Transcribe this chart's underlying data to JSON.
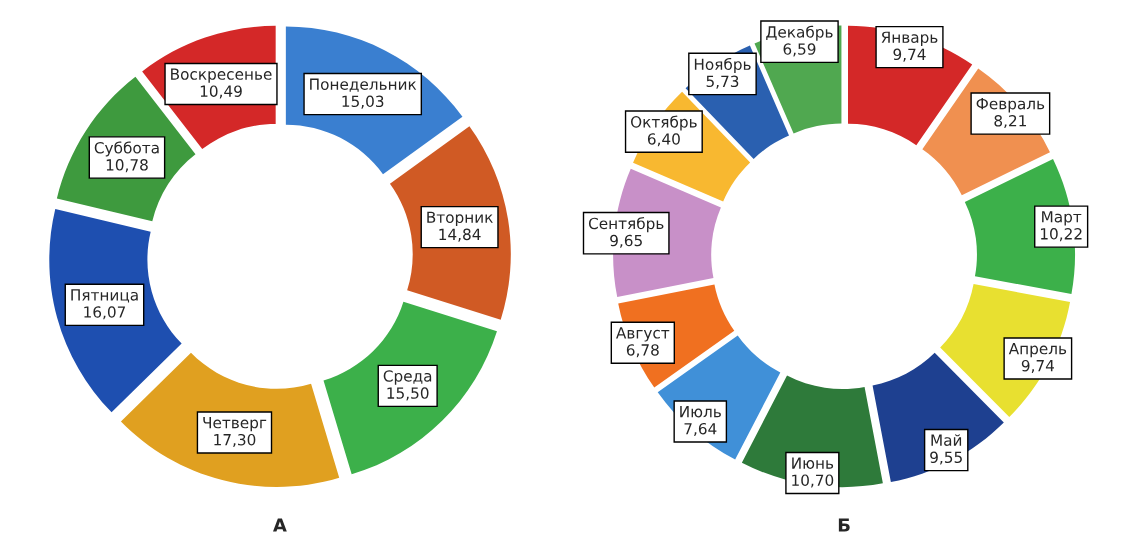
{
  "chart_data": [
    {
      "type": "donut",
      "title": "А",
      "categories": [
        "Понедельник",
        "Вторник",
        "Среда",
        "Четверг",
        "Пятница",
        "Суббота",
        "Воскресенье"
      ],
      "values": [
        15.03,
        14.84,
        15.5,
        17.3,
        16.07,
        10.78,
        10.49
      ],
      "value_labels": [
        "15,03",
        "14,84",
        "15,50",
        "17,30",
        "16,07",
        "10,78",
        "10,49"
      ],
      "colors": [
        "#3a7fd0",
        "#d05a24",
        "#3cb04a",
        "#e0a020",
        "#1e4fb0",
        "#3e9a3e",
        "#d42828"
      ],
      "legend": false
    },
    {
      "type": "donut",
      "title": "Б",
      "categories": [
        "Январь",
        "Февраль",
        "Март",
        "Апрель",
        "Май",
        "Июнь",
        "Июль",
        "Август",
        "Сентябрь",
        "Октябрь",
        "Ноябрь",
        "Декабрь"
      ],
      "values": [
        9.74,
        8.21,
        10.22,
        9.74,
        9.55,
        10.7,
        7.64,
        6.78,
        9.65,
        6.4,
        5.73,
        6.59
      ],
      "value_labels": [
        "9,74",
        "8,21",
        "10,22",
        "9,74",
        "9,55",
        "10,70",
        "7,64",
        "6,78",
        "9,65",
        "6,40",
        "5,73",
        "6,59"
      ],
      "colors": [
        "#d42828",
        "#f09050",
        "#3cb04a",
        "#e8e030",
        "#1e4090",
        "#2e7a3a",
        "#4090d8",
        "#f07020",
        "#c890c8",
        "#f8b830",
        "#2a60b0",
        "#50a850"
      ],
      "legend": false
    }
  ]
}
